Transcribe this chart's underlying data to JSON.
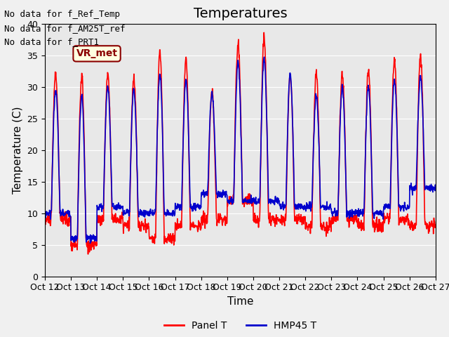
{
  "title": "Temperatures",
  "xlabel": "Time",
  "ylabel": "Temperature (C)",
  "ylim": [
    0,
    40
  ],
  "yticks": [
    0,
    5,
    10,
    15,
    20,
    25,
    30,
    35,
    40
  ],
  "background_color": "#e8e8e8",
  "panel_color": "#ff0000",
  "hmp45_color": "#0000cc",
  "annotations_text": [
    "No data for f_Ref_Temp",
    "No data for f_AM25T_ref",
    "No data for f_PRT1"
  ],
  "legend_label_panel": "Panel T",
  "legend_label_hmp45": "HMP45 T",
  "vr_met_label": "VR_met",
  "x_tick_labels": [
    "Oct 12",
    "Oct 13",
    "Oct 14",
    "Oct 15",
    "Oct 16",
    "Oct 17",
    "Oct 18",
    "Oct 19",
    "Oct 20",
    "Oct 21",
    "Oct 22",
    "Oct 23",
    "Oct 24",
    "Oct 25",
    "Oct 26",
    "Oct 27"
  ],
  "num_days": 15,
  "title_fontsize": 14,
  "axis_fontsize": 11,
  "tick_fontsize": 9,
  "annotation_fontsize": 9
}
